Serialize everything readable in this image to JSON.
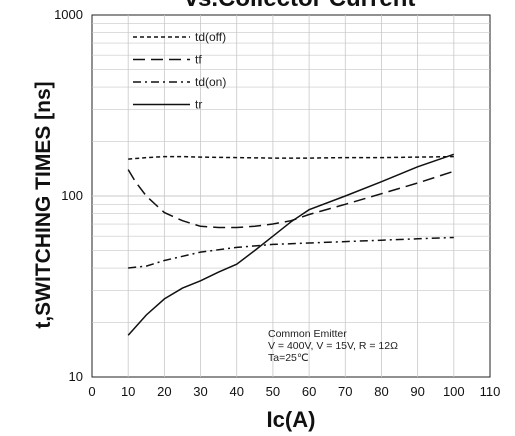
{
  "chart_data": {
    "type": "line",
    "title": "vs.Collector Current",
    "xlabel": "Ic(A)",
    "ylabel": "t,SWITCHING TIMES [ns]",
    "xlim": [
      0,
      110
    ],
    "ylim": [
      10,
      1000
    ],
    "yscale": "log",
    "x_ticks": [
      "0",
      "10",
      "20",
      "30",
      "40",
      "50",
      "60",
      "70",
      "80",
      "90",
      "100",
      "110"
    ],
    "y_ticks": [
      "10",
      "100",
      "1000"
    ],
    "grid": true,
    "legend_position": "top-left",
    "series": [
      {
        "name": "td(off)",
        "style": "dashed",
        "x": [
          10,
          15,
          20,
          25,
          30,
          40,
          50,
          60,
          70,
          80,
          90,
          100
        ],
        "y": [
          160,
          163,
          165,
          165,
          164,
          163,
          162,
          162,
          163,
          163,
          164,
          165
        ]
      },
      {
        "name": "tf",
        "style": "long-dash",
        "x": [
          10,
          12,
          15,
          18,
          20,
          25,
          30,
          35,
          40,
          45,
          50,
          55,
          60,
          70,
          80,
          90,
          100
        ],
        "y": [
          140,
          120,
          100,
          88,
          81,
          73,
          68,
          67,
          67,
          68,
          70,
          73,
          79,
          90,
          103,
          118,
          137
        ]
      },
      {
        "name": "td(on)",
        "style": "dash-dot",
        "x": [
          10,
          15,
          20,
          30,
          40,
          50,
          60,
          70,
          80,
          90,
          100
        ],
        "y": [
          40,
          41,
          44,
          49,
          52,
          54,
          55,
          56,
          57,
          58,
          59
        ]
      },
      {
        "name": "tr",
        "style": "solid",
        "x": [
          10,
          15,
          20,
          25,
          30,
          35,
          40,
          45,
          50,
          55,
          60,
          70,
          80,
          90,
          100
        ],
        "y": [
          17,
          22,
          27,
          31,
          34,
          38,
          42,
          50,
          60,
          72,
          84,
          100,
          120,
          145,
          170
        ]
      }
    ],
    "annotations": [
      "Common Emitter",
      "V    = 400V, V    = 15V, R  = 12Ω",
      "Ta=25℃"
    ]
  }
}
